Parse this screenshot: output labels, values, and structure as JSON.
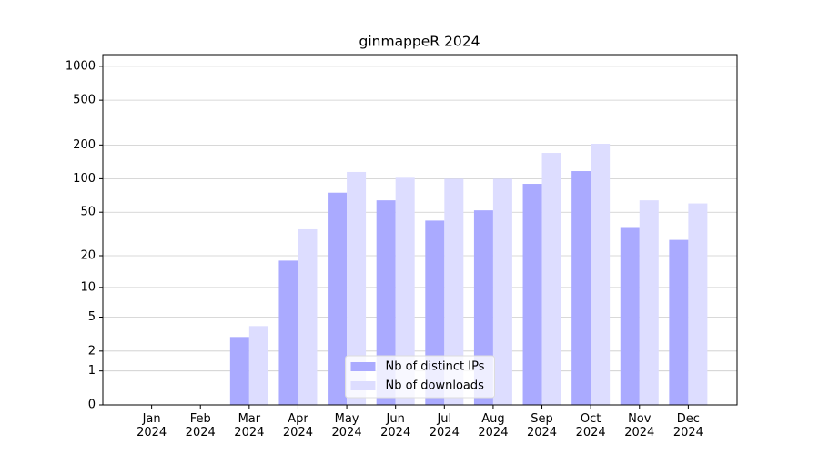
{
  "chart_data": {
    "type": "bar",
    "title": "ginmappeR 2024",
    "categories": [
      "Jan\n2024",
      "Feb\n2024",
      "Mar\n2024",
      "Apr\n2024",
      "May\n2024",
      "Jun\n2024",
      "Jul\n2024",
      "Aug\n2024",
      "Sep\n2024",
      "Oct\n2024",
      "Nov\n2024",
      "Dec\n2024"
    ],
    "series": [
      {
        "name": "Nb of distinct IPs",
        "color": "#aaaaff",
        "values": [
          0,
          0,
          3,
          18,
          75,
          64,
          42,
          52,
          90,
          117,
          36,
          28
        ]
      },
      {
        "name": "Nb of downloads",
        "color": "#ddddff",
        "values": [
          0,
          0,
          4,
          35,
          115,
          102,
          100,
          100,
          170,
          205,
          64,
          60
        ]
      }
    ],
    "yscale": "log1p",
    "ylim": [
      0,
      1270
    ],
    "yticks": [
      0,
      1,
      2,
      5,
      10,
      20,
      50,
      100,
      200,
      500,
      1000
    ],
    "grid": true,
    "legend": "lower center"
  }
}
